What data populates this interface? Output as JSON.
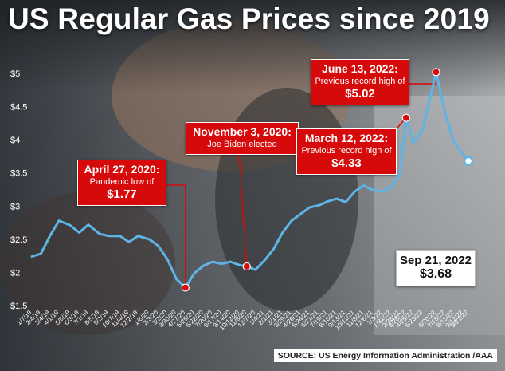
{
  "page": {
    "title": "US Regular Gas Prices since 2019"
  },
  "source": "SOURCE: US Energy Information Administration /AAA",
  "annotations": {
    "april": {
      "heading": "April 27, 2020:",
      "text": "Pandemic low of",
      "value": "$1.77"
    },
    "november": {
      "heading": "November 3, 2020:",
      "text": "Joe Biden elected"
    },
    "march": {
      "heading": "March 12, 2022:",
      "text": "Previous record high of",
      "value": "$4.33"
    },
    "june": {
      "heading": "June 13, 2022:",
      "text": "Previous record high of",
      "value": "$5.02"
    },
    "sep": {
      "heading": "Sep 21, 2022",
      "value": "$3.68"
    }
  },
  "colors": {
    "line": "#5fb4e6",
    "highlight": "#d60a0a",
    "axis_text": "#ffffff"
  },
  "chart_data": {
    "type": "line",
    "title": "US Regular Gas Prices since 2019",
    "ylim": [
      1.5,
      5.0
    ],
    "yticks": [
      "$1.5",
      "$2",
      "$2.5",
      "$3",
      "$3.5",
      "$4",
      "$4.5",
      "$5"
    ],
    "ytick_values": [
      1.5,
      2.0,
      2.5,
      3.0,
      3.5,
      4.0,
      4.5,
      5.0
    ],
    "x_date_range": [
      "2019-01-07",
      "2022-09-21"
    ],
    "series": [
      {
        "x": [
          "2019-01-07",
          "2019-02-04",
          "2019-03-04",
          "2019-04-01",
          "2019-05-06",
          "2019-06-03",
          "2019-07-01",
          "2019-08-05",
          "2019-09-02",
          "2019-10-07",
          "2019-11-04",
          "2019-12-02",
          "2020-01-06",
          "2020-02-03",
          "2020-03-02",
          "2020-03-30",
          "2020-04-27",
          "2020-05-25",
          "2020-06-22",
          "2020-07-20",
          "2020-08-17",
          "2020-09-14",
          "2020-10-12",
          "2020-11-03",
          "2020-11-30",
          "2020-12-28",
          "2021-01-25",
          "2021-02-22",
          "2021-03-22",
          "2021-04-19",
          "2021-05-17",
          "2021-06-14",
          "2021-07-12",
          "2021-08-09",
          "2021-09-06",
          "2021-10-04",
          "2021-11-01",
          "2021-11-29",
          "2021-12-27",
          "2022-01-24",
          "2022-02-21",
          "2022-03-12",
          "2022-04-04",
          "2022-05-02",
          "2022-06-13",
          "2022-07-11",
          "2022-08-08",
          "2022-09-05",
          "2022-09-21"
        ],
        "values": [
          2.24,
          2.28,
          2.55,
          2.78,
          2.71,
          2.6,
          2.72,
          2.58,
          2.55,
          2.55,
          2.46,
          2.55,
          2.5,
          2.4,
          2.2,
          1.9,
          1.77,
          1.99,
          2.1,
          2.16,
          2.13,
          2.16,
          2.11,
          2.09,
          2.04,
          2.18,
          2.35,
          2.6,
          2.78,
          2.88,
          2.98,
          3.01,
          3.07,
          3.11,
          3.06,
          3.22,
          3.31,
          3.24,
          3.22,
          3.28,
          3.48,
          4.33,
          3.95,
          4.15,
          5.02,
          4.4,
          3.96,
          3.78,
          3.68
        ]
      }
    ],
    "x_tick_labels": [
      "1/7/19",
      "2/4/19",
      "3/4/19",
      "4/1/19",
      "5/6/19",
      "6/3/19",
      "7/1/19",
      "8/5/19",
      "9/2/19",
      "10/7/19",
      "11/4/19",
      "12/2/19",
      "1/6/20",
      "2/3/20",
      "3/2/20",
      "3/30/20",
      "4/27/20",
      "5/25/20",
      "6/22/20",
      "7/20/20",
      "8/17/20",
      "9/14/20",
      "10/12/20",
      "11/9/20",
      "12/7/20",
      "1/4/21",
      "2/1/21",
      "3/1/21",
      "3/29/21",
      "4/26/21",
      "5/24/21",
      "6/21/21",
      "7/19/21",
      "8/16/21",
      "9/13/21",
      "10/11/21",
      "11/8/21",
      "12/6/21",
      "1/3/22",
      "1/31/22",
      "2/28/22",
      "3/28/22",
      "4/25/22",
      "5/23/22",
      "6/20/22",
      "7/18/22",
      "8/15/22",
      "9/12/22",
      "9/21/22"
    ],
    "highlights": [
      {
        "date": "2020-04-27",
        "value": 1.77
      },
      {
        "date": "2020-11-03",
        "value": 2.09
      },
      {
        "date": "2022-03-12",
        "value": 4.33
      },
      {
        "date": "2022-06-13",
        "value": 5.02
      },
      {
        "date": "2022-09-21",
        "value": 3.68
      }
    ]
  }
}
